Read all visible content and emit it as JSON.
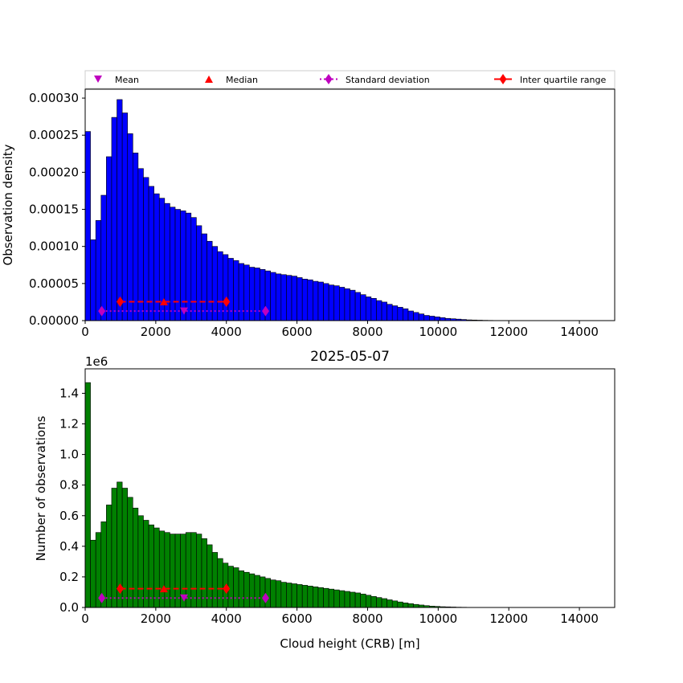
{
  "legend": {
    "mean": "Mean",
    "median": "Median",
    "std": "Standard deviation",
    "iqr": "Inter quartile range"
  },
  "colors": {
    "top_bars": "#0000ff",
    "bottom_bars": "#008000",
    "mean_marker": "#bf00bf",
    "median_marker": "#ff0000",
    "std_line": "#bf00bf",
    "iqr_line": "#ff0000"
  },
  "stats": {
    "mean": 2800,
    "median": 2230,
    "std_range": [
      470,
      5110
    ],
    "iqr_range": [
      990,
      4000
    ]
  },
  "chart_data": [
    {
      "type": "bar",
      "title": "",
      "xlabel": "",
      "ylabel": "Observation density",
      "bin_width": 150,
      "xlim": [
        0,
        15000
      ],
      "ylim": [
        0,
        0.000312
      ],
      "xticks": [
        "0",
        "2000",
        "4000",
        "6000",
        "8000",
        "10000",
        "12000",
        "14000"
      ],
      "yticks": [
        "0.00000",
        "0.00005",
        "0.00010",
        "0.00015",
        "0.00020",
        "0.00025",
        "0.00030"
      ],
      "marker_y": {
        "std": 1.28e-05,
        "mean": 1.28e-05,
        "iqr": 2.55e-05,
        "median": 2.55e-05
      },
      "values": [
        0.000255,
        0.000109,
        0.000135,
        0.000169,
        0.000221,
        0.000274,
        0.000298,
        0.00028,
        0.000252,
        0.000226,
        0.000205,
        0.000193,
        0.000181,
        0.000171,
        0.000165,
        0.000158,
        0.000153,
        0.00015,
        0.000148,
        0.000145,
        0.000139,
        0.000128,
        0.000117,
        0.000107,
        0.0001,
        9.3e-05,
        8.9e-05,
        8.4e-05,
        8.1e-05,
        7.7e-05,
        7.5e-05,
        7.2e-05,
        7.1e-05,
        6.9e-05,
        6.7e-05,
        6.5e-05,
        6.3e-05,
        6.2e-05,
        6.1e-05,
        6e-05,
        5.8e-05,
        5.6e-05,
        5.5e-05,
        5.3e-05,
        5.2e-05,
        5e-05,
        4.8e-05,
        4.7e-05,
        4.5e-05,
        4.3e-05,
        4.1e-05,
        3.8e-05,
        3.5e-05,
        3.2e-05,
        3e-05,
        2.7e-05,
        2.5e-05,
        2.2e-05,
        2e-05,
        1.8e-05,
        1.6e-05,
        1.3e-05,
        1.1e-05,
        9e-06,
        7e-06,
        6e-06,
        5e-06,
        4e-06,
        3e-06,
        2.5e-06,
        2e-06,
        1.5e-06,
        1e-06,
        8e-07,
        6e-07,
        4e-07,
        3e-07,
        2e-07,
        1e-07,
        1e-07
      ],
      "color": "#0000ff"
    },
    {
      "type": "bar",
      "title": "2025-05-07",
      "xlabel": "Cloud height (CRB) [m]",
      "ylabel": "Number of observations",
      "offset_text": "1e6",
      "bin_width": 150,
      "xlim": [
        0,
        15000
      ],
      "ylim": [
        0,
        1.56
      ],
      "xticks": [
        "0",
        "2000",
        "4000",
        "6000",
        "8000",
        "10000",
        "12000",
        "14000"
      ],
      "yticks": [
        "0.0",
        "0.2",
        "0.4",
        "0.6",
        "0.8",
        "1.0",
        "1.2",
        "1.4"
      ],
      "marker_y": {
        "std": 0.062,
        "mean": 0.062,
        "iqr": 0.123,
        "median": 0.123
      },
      "values": [
        1.47,
        0.44,
        0.49,
        0.56,
        0.67,
        0.78,
        0.82,
        0.78,
        0.72,
        0.65,
        0.6,
        0.57,
        0.54,
        0.52,
        0.5,
        0.49,
        0.48,
        0.48,
        0.48,
        0.49,
        0.49,
        0.48,
        0.45,
        0.41,
        0.36,
        0.32,
        0.29,
        0.27,
        0.26,
        0.24,
        0.23,
        0.22,
        0.21,
        0.2,
        0.19,
        0.18,
        0.175,
        0.165,
        0.16,
        0.155,
        0.15,
        0.145,
        0.14,
        0.135,
        0.13,
        0.125,
        0.12,
        0.115,
        0.11,
        0.105,
        0.1,
        0.095,
        0.088,
        0.08,
        0.072,
        0.065,
        0.058,
        0.05,
        0.043,
        0.036,
        0.03,
        0.025,
        0.02,
        0.016,
        0.012,
        0.009,
        0.007,
        0.005,
        0.004,
        0.003,
        0.002,
        0.0015,
        0.001,
        0.0008,
        0.0006,
        0.0004,
        0.0003,
        0.0002,
        0.0001,
        0.0001
      ],
      "color": "#008000"
    }
  ]
}
